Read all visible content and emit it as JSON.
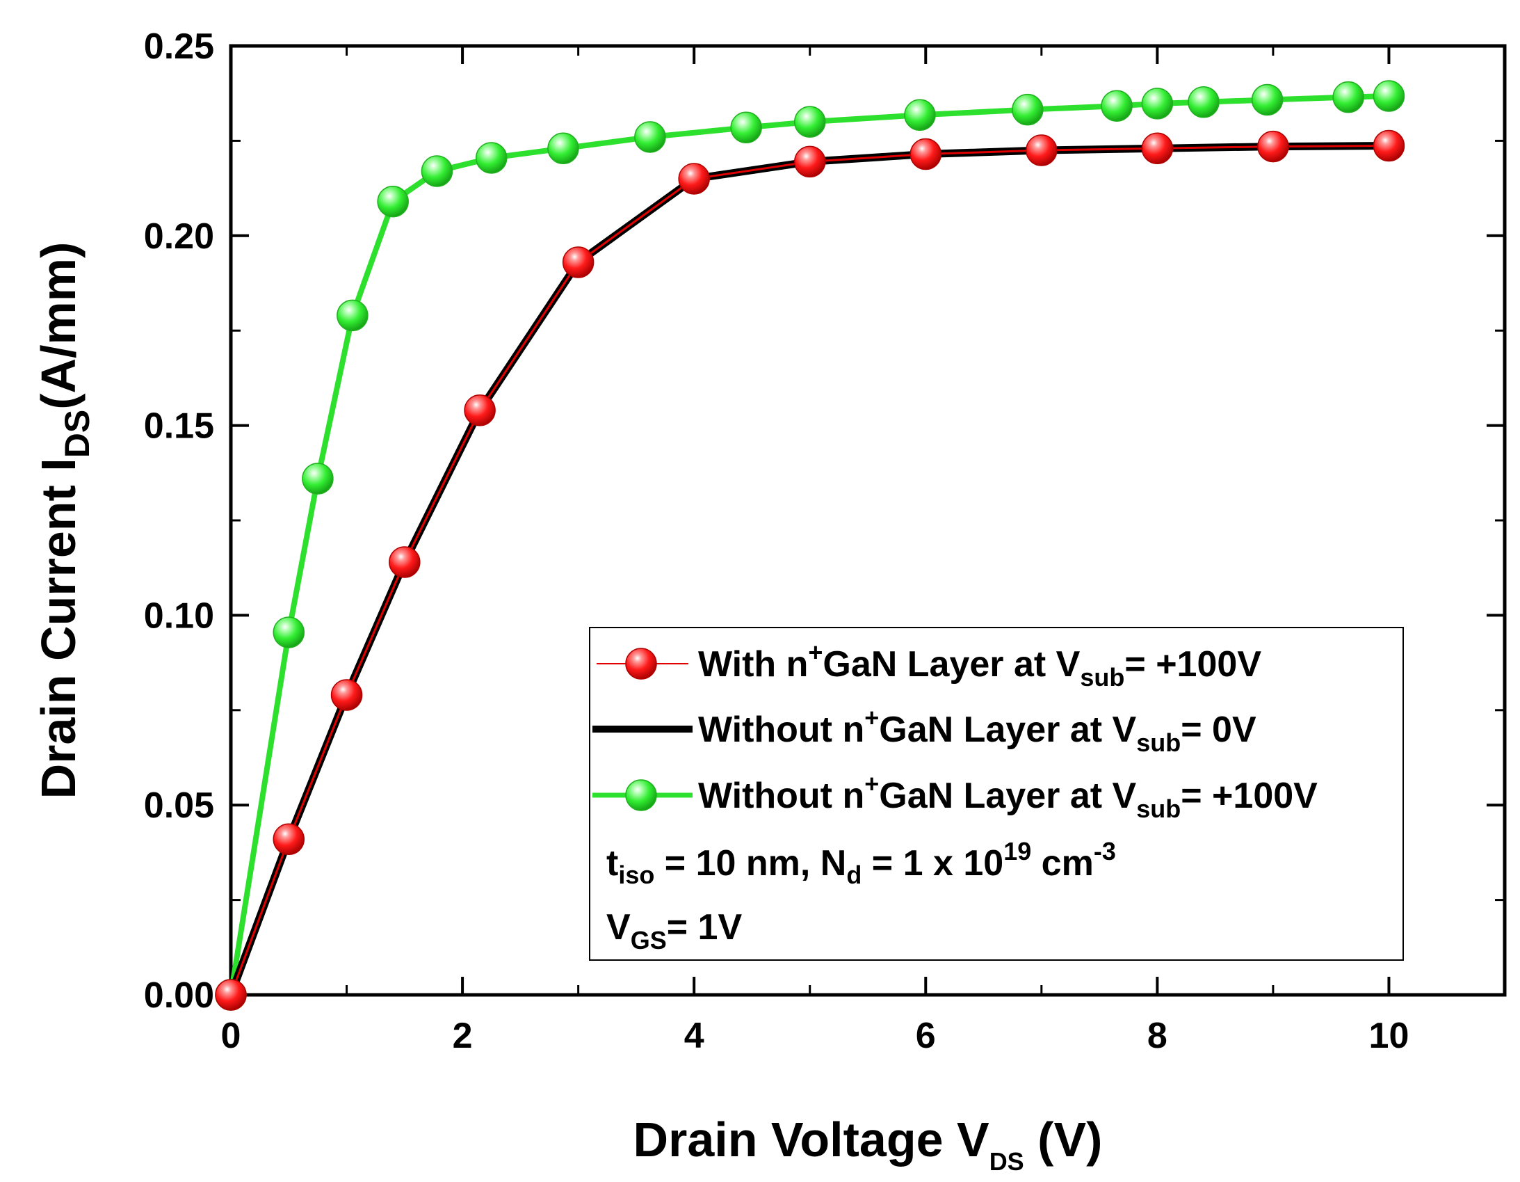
{
  "chart_data": {
    "type": "line",
    "title": "",
    "xlabel": {
      "main": "Drain Voltage V",
      "sub": "DS",
      "unit": " (V)"
    },
    "ylabel": {
      "main": "Drain Current I",
      "sub": "DS",
      "unit": "(A/mm)"
    },
    "xlim": [
      0,
      11
    ],
    "ylim": [
      0,
      0.25
    ],
    "xticks": [
      0,
      2,
      4,
      6,
      8,
      10
    ],
    "xtick_labels": [
      "0",
      "2",
      "4",
      "6",
      "8",
      "10"
    ],
    "yticks": [
      0,
      0.05,
      0.1,
      0.15,
      0.2,
      0.25
    ],
    "ytick_labels": [
      "0.00",
      "0.05",
      "0.10",
      "0.15",
      "0.20",
      "0.25"
    ],
    "grid": false,
    "legend_position": "bottom-right",
    "series": [
      {
        "name": "With n+GaN Layer at Vsub= +100V",
        "style": "thin-line-with-markers",
        "color": "#e00000",
        "marker_color": "#ff2a2a",
        "x": [
          0,
          0.5,
          1.0,
          1.5,
          2.15,
          3.0,
          4.0,
          5.0,
          6.0,
          7.0,
          8.0,
          9.0,
          10.0
        ],
        "y": [
          0.0,
          0.041,
          0.079,
          0.114,
          0.154,
          0.193,
          0.215,
          0.2195,
          0.2215,
          0.2225,
          0.223,
          0.2235,
          0.2237
        ]
      },
      {
        "name": "Without n+GaN Layer at Vsub= 0V",
        "style": "thick-line",
        "color": "#000000",
        "x": [
          0,
          0.5,
          1.0,
          1.5,
          2.15,
          3.0,
          4.0,
          5.0,
          6.0,
          7.0,
          8.0,
          9.0,
          10.0
        ],
        "y": [
          0.0,
          0.041,
          0.079,
          0.114,
          0.154,
          0.193,
          0.215,
          0.2195,
          0.2215,
          0.2225,
          0.223,
          0.2235,
          0.2237
        ]
      },
      {
        "name": "Without n+GaN Layer at Vsub= +100V",
        "style": "line-with-markers",
        "color": "#2ee02e",
        "marker_color": "#33ff33",
        "x": [
          0,
          0.5,
          0.75,
          1.05,
          1.4,
          1.78,
          2.25,
          2.87,
          3.62,
          4.45,
          5.0,
          5.95,
          6.88,
          7.65,
          8.0,
          8.4,
          8.95,
          9.65,
          10.0
        ],
        "y": [
          0.0,
          0.0955,
          0.136,
          0.179,
          0.209,
          0.217,
          0.2205,
          0.223,
          0.226,
          0.2285,
          0.23,
          0.2318,
          0.2332,
          0.2342,
          0.2348,
          0.2352,
          0.2358,
          0.2365,
          0.2368
        ]
      }
    ],
    "legend": [
      {
        "pre": "With n",
        "sup": "+",
        "mid": "GaN Layer at V",
        "sub": "sub",
        "post": "= +100V"
      },
      {
        "pre": "Without n",
        "sup": "+",
        "mid": "GaN Layer at V",
        "sub": "sub",
        "post": "= 0V"
      },
      {
        "pre": "Without n",
        "sup": "+",
        "mid": "GaN Layer at V",
        "sub": "sub",
        "post": "= +100V"
      }
    ],
    "annotations": [
      {
        "t": "t",
        "t_sub": "iso",
        "a": " = 10 nm, N",
        "a_sub": "d",
        "b": " = 1 x 10",
        "b_sup": "19",
        "c": " cm",
        "c_sup": "-3"
      },
      {
        "v": "V",
        "v_sub": "GS",
        "rest": "= 1V"
      }
    ]
  }
}
